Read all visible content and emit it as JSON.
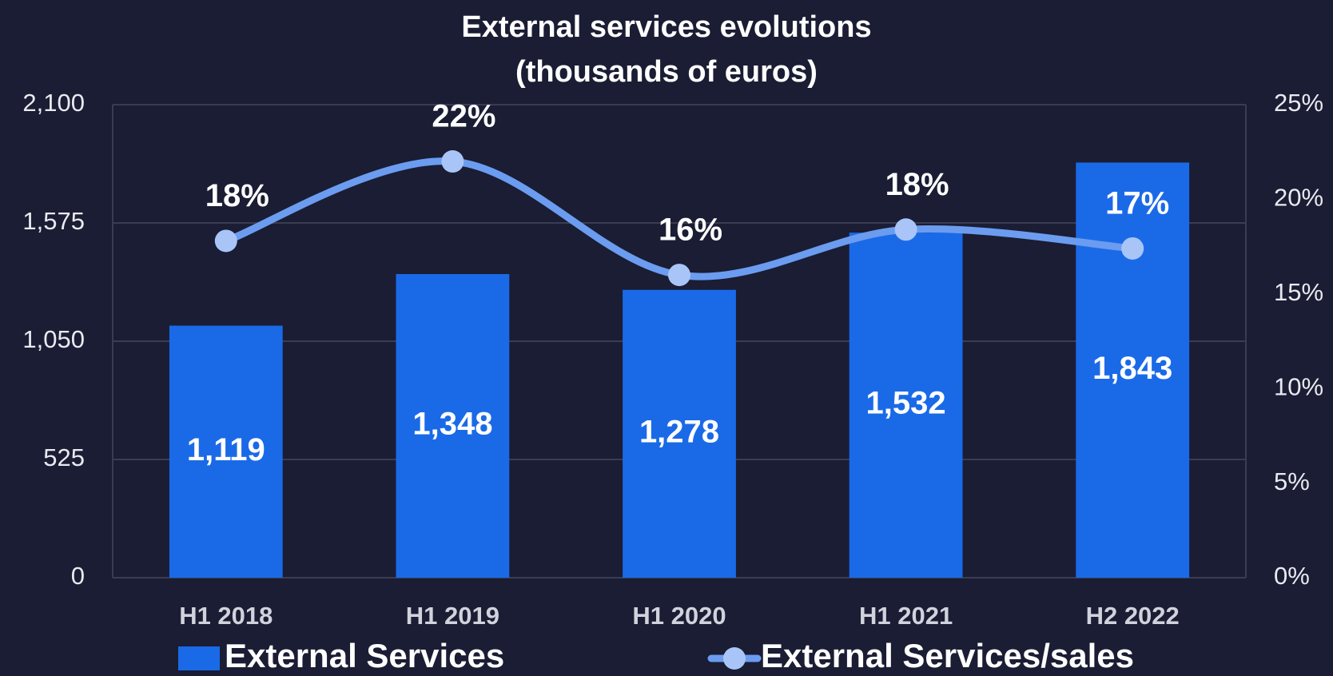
{
  "chart_data": {
    "type": "bar_line",
    "title": [
      "External services evolutions",
      "(thousands of euros)"
    ],
    "categories": [
      "H1 2018",
      "H1 2019",
      "H1 2020",
      "H1 2021",
      "H2 2022"
    ],
    "series": [
      {
        "name": "External Services",
        "type": "bar",
        "color": "#1a6ae8",
        "values": [
          1119,
          1348,
          1278,
          1532,
          1843
        ],
        "value_labels": [
          "1,119",
          "1,348",
          "1,278",
          "1,532",
          "1,843"
        ]
      },
      {
        "name": "External Services/sales",
        "type": "line",
        "axis": "y2",
        "color": "#6b9cf0",
        "marker_color": "#a9c5f7",
        "values": [
          17.8,
          22,
          16,
          18.4,
          17.4
        ],
        "value_labels": [
          "18%",
          "22%",
          "16%",
          "18%",
          "17%"
        ]
      }
    ],
    "ylim": [
      0,
      2100
    ],
    "yticks": [
      0,
      525,
      {
        "value": 1050,
        "label": "1,050"
      },
      {
        "value": 1575,
        "label": "1,575"
      },
      {
        "value": 2100,
        "label": "2,100"
      }
    ],
    "y2lim": [
      0,
      25
    ],
    "y2ticks": [
      {
        "value": 0,
        "label": "0%"
      },
      {
        "value": 5,
        "label": "5%"
      },
      {
        "value": 10,
        "label": "10%"
      },
      {
        "value": 15,
        "label": "15%"
      },
      {
        "value": 20,
        "label": "20%"
      },
      {
        "value": 25,
        "label": "25%"
      }
    ],
    "grid": true,
    "legend": "bottom"
  }
}
